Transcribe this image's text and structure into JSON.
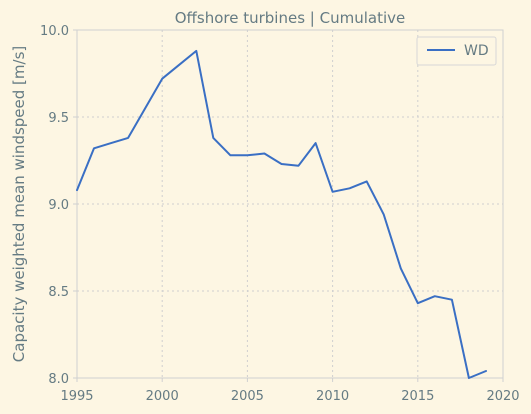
{
  "chart_data": {
    "type": "line",
    "title": "Offshore turbines | Cumulative",
    "xlabel": "",
    "ylabel": "Capacity weighted mean windspeed [m/s]",
    "xlim": [
      1995,
      2020
    ],
    "ylim": [
      8.0,
      10.0
    ],
    "xticks": [
      "1995",
      "2000",
      "2005",
      "2010",
      "2015",
      "2020"
    ],
    "yticks": [
      "8.0",
      "8.5",
      "9.0",
      "9.5",
      "10.0"
    ],
    "grid": true,
    "legend_position": "top-right",
    "series": [
      {
        "name": "WD",
        "color": "#3a6fc4",
        "x": [
          1995,
          1996,
          1997,
          1998,
          1999,
          2000,
          2001,
          2002,
          2003,
          2004,
          2005,
          2006,
          2007,
          2008,
          2009,
          2010,
          2011,
          2012,
          2013,
          2014,
          2015,
          2016,
          2017,
          2018,
          2019
        ],
        "y": [
          9.08,
          9.32,
          9.35,
          9.38,
          9.55,
          9.72,
          9.8,
          9.88,
          9.38,
          9.28,
          9.28,
          9.29,
          9.23,
          9.22,
          9.35,
          9.07,
          9.09,
          9.13,
          8.94,
          8.63,
          8.43,
          8.47,
          8.45,
          8.0,
          8.04
        ]
      }
    ]
  }
}
